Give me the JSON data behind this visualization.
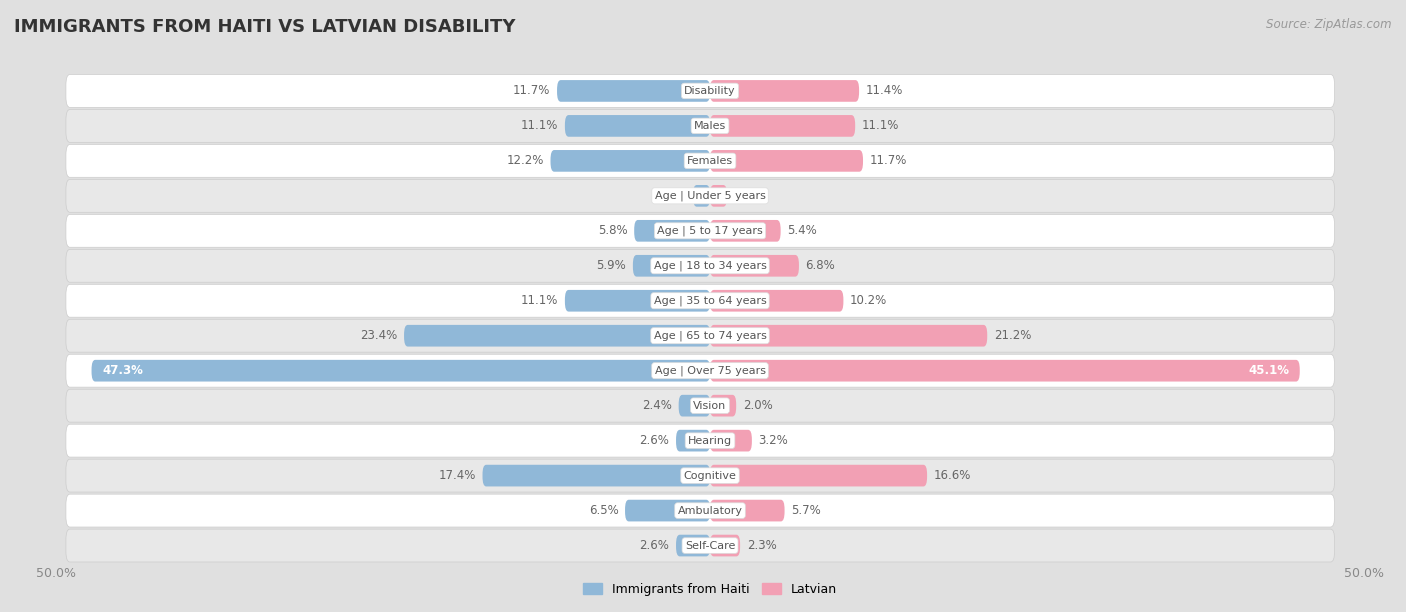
{
  "title": "IMMIGRANTS FROM HAITI VS LATVIAN DISABILITY",
  "source": "Source: ZipAtlas.com",
  "categories": [
    "Disability",
    "Males",
    "Females",
    "Age | Under 5 years",
    "Age | 5 to 17 years",
    "Age | 18 to 34 years",
    "Age | 35 to 64 years",
    "Age | 65 to 74 years",
    "Age | Over 75 years",
    "Vision",
    "Hearing",
    "Cognitive",
    "Ambulatory",
    "Self-Care"
  ],
  "haiti_values": [
    11.7,
    11.1,
    12.2,
    1.3,
    5.8,
    5.9,
    11.1,
    23.4,
    47.3,
    2.4,
    2.6,
    17.4,
    6.5,
    2.6
  ],
  "latvian_values": [
    11.4,
    11.1,
    11.7,
    1.3,
    5.4,
    6.8,
    10.2,
    21.2,
    45.1,
    2.0,
    3.2,
    16.6,
    5.7,
    2.3
  ],
  "haiti_color": "#90b8d8",
  "latvian_color": "#f2a0b4",
  "axis_max": 50.0,
  "row_bg_light": "#ffffff",
  "row_bg_dark": "#e8e8e8",
  "bar_height": 0.62,
  "legend_labels": [
    "Immigrants from Haiti",
    "Latvian"
  ],
  "label_fontsize": 8.5,
  "cat_fontsize": 8.0,
  "title_fontsize": 13,
  "source_fontsize": 8.5
}
